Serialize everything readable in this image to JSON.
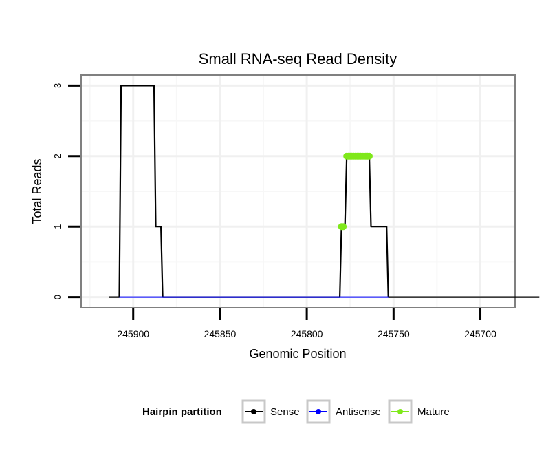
{
  "chart_data": {
    "type": "line",
    "title": "Small RNA-seq Read Density",
    "xlabel": "Genomic Position",
    "ylabel": "Total Reads",
    "xlim": [
      245930,
      245680
    ],
    "x_reversed": true,
    "ylim": [
      -0.15,
      3.15
    ],
    "x_ticks": [
      245900,
      245850,
      245800,
      245750,
      245700
    ],
    "x_tick_labels": [
      "245900",
      "245850",
      "245800",
      "245750",
      "245700"
    ],
    "y_ticks": [
      0,
      1,
      2,
      3
    ],
    "y_tick_labels": [
      "0",
      "1",
      "2",
      "3"
    ],
    "grid": true,
    "legend_position": "bottom",
    "legend_title": "Hairpin partition",
    "series": [
      {
        "name": "Sense",
        "color": "#000000",
        "points": [
          [
            245914,
            0
          ],
          [
            245908,
            0
          ],
          [
            245907,
            3
          ],
          [
            245888,
            3
          ],
          [
            245887,
            1
          ],
          [
            245884,
            1
          ],
          [
            245883,
            0
          ],
          [
            245781,
            0
          ],
          [
            245780,
            1
          ],
          [
            245778,
            1
          ],
          [
            245777,
            2
          ],
          [
            245764,
            2
          ],
          [
            245763,
            1
          ],
          [
            245754,
            1
          ],
          [
            245753,
            0
          ],
          [
            245666,
            0
          ]
        ]
      },
      {
        "name": "Antisense",
        "color": "#0000ff",
        "points": [
          [
            245908,
            0
          ],
          [
            245883,
            0
          ],
          [
            245780,
            0
          ],
          [
            245753,
            0
          ]
        ]
      },
      {
        "name": "Mature",
        "color": "#7fe81a",
        "points": [
          [
            245780,
            1
          ],
          [
            245779,
            1
          ],
          [
            245777,
            2
          ],
          [
            245776,
            2
          ],
          [
            245775,
            2
          ],
          [
            245774,
            2
          ],
          [
            245773,
            2
          ],
          [
            245772,
            2
          ],
          [
            245771,
            2
          ],
          [
            245770,
            2
          ],
          [
            245769,
            2
          ],
          [
            245768,
            2
          ],
          [
            245767,
            2
          ],
          [
            245766,
            2
          ],
          [
            245765,
            2
          ],
          [
            245764,
            2
          ]
        ]
      }
    ]
  }
}
